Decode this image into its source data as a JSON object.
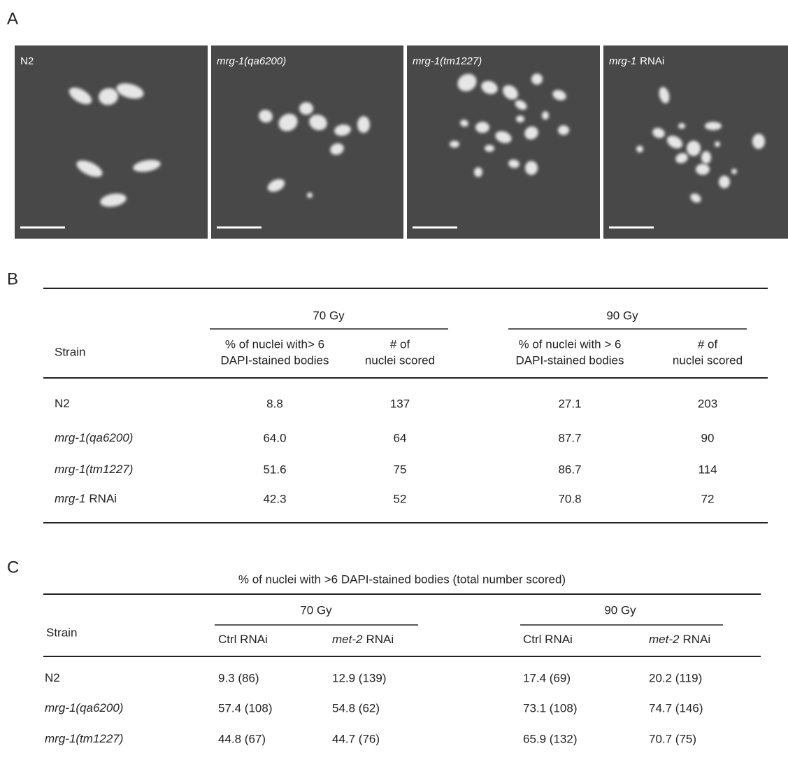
{
  "panel_letters": [
    "A",
    "B",
    "C"
  ],
  "panel_a": {
    "images": [
      {
        "label": {
          "rest": "N2"
        }
      },
      {
        "label": {
          "gene": "mrg-1(qa6200)"
        }
      },
      {
        "label": {
          "gene": "mrg-1(tm1227)"
        }
      },
      {
        "label": {
          "gene": "mrg-1",
          "rest": "RNAi"
        }
      }
    ]
  },
  "panel_b": {
    "strain_header": "Strain",
    "groups": [
      "70 Gy",
      "90 Gy"
    ],
    "column_headers": [
      [
        "% of nuclei with> 6",
        "DAPI-stained bodies"
      ],
      [
        "# of",
        "nuclei scored"
      ],
      [
        "% of nuclei with > 6",
        "DAPI-stained bodies"
      ],
      [
        "# of",
        "nuclei scored"
      ]
    ],
    "rows": [
      {
        "strain": {
          "rest": "N2"
        },
        "cells": [
          "8.8",
          "137",
          "27.1",
          "203"
        ]
      },
      {
        "strain": {
          "gene": "mrg-1(qa6200)"
        },
        "cells": [
          "64.0",
          "64",
          "87.7",
          "90"
        ]
      },
      {
        "strain": {
          "gene": "mrg-1(tm1227)"
        },
        "cells": [
          "51.6",
          "75",
          "86.7",
          "114"
        ]
      },
      {
        "strain": {
          "gene": "mrg-1",
          "rest": "RNAi"
        },
        "cells": [
          "42.3",
          "52",
          "70.8",
          "72"
        ]
      }
    ]
  },
  "panel_c": {
    "caption": "% of nuclei  with >6 DAPI-stained bodies (total number scored)",
    "strain_header": "Strain",
    "groups": [
      "70 Gy",
      "90 Gy"
    ],
    "column_headers": [
      {
        "rest": "Ctrl RNAi"
      },
      {
        "gene": "met-2",
        "rest": "RNAi"
      },
      {
        "rest": "Ctrl RNAi"
      },
      {
        "gene": "met-2",
        "rest": "RNAi"
      }
    ],
    "rows": [
      {
        "strain": {
          "rest": "N2"
        },
        "cells": [
          "9.3 (86)",
          "12.9 (139)",
          "17.4 (69)",
          "20.2 (119)"
        ]
      },
      {
        "strain": {
          "gene": "mrg-1(qa6200)"
        },
        "cells": [
          "57.4 (108)",
          "54.8 (62)",
          "73.1 (108)",
          "74.7 (146)"
        ]
      },
      {
        "strain": {
          "gene": "mrg-1(tm1227)"
        },
        "cells": [
          "44.8 (67)",
          "44.7 (76)",
          "65.9 (132)",
          "70.7 (75)"
        ]
      }
    ]
  }
}
